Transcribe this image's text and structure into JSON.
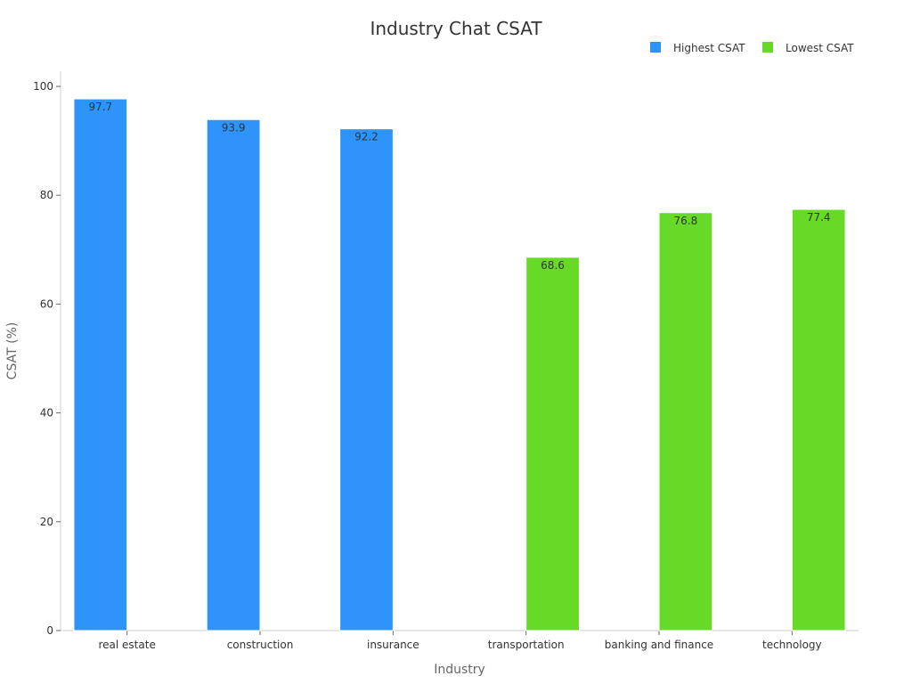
{
  "chart_data": {
    "type": "bar",
    "title": "Industry Chat CSAT",
    "xlabel": "Industry",
    "ylabel": "CSAT (%)",
    "categories": [
      "real estate",
      "construction",
      "insurance",
      "transportation",
      "banking and finance",
      "technology"
    ],
    "series": [
      {
        "name": "Highest CSAT",
        "color": "#2e93fa",
        "values": [
          97.7,
          93.9,
          92.2,
          null,
          null,
          null
        ]
      },
      {
        "name": "Lowest CSAT",
        "color": "#66da26",
        "values": [
          null,
          null,
          null,
          68.6,
          76.8,
          77.4
        ]
      }
    ],
    "ylim": [
      0,
      100
    ],
    "yticks": [
      0,
      20,
      40,
      60,
      80,
      100
    ],
    "grid": false,
    "legend": "top-right"
  }
}
